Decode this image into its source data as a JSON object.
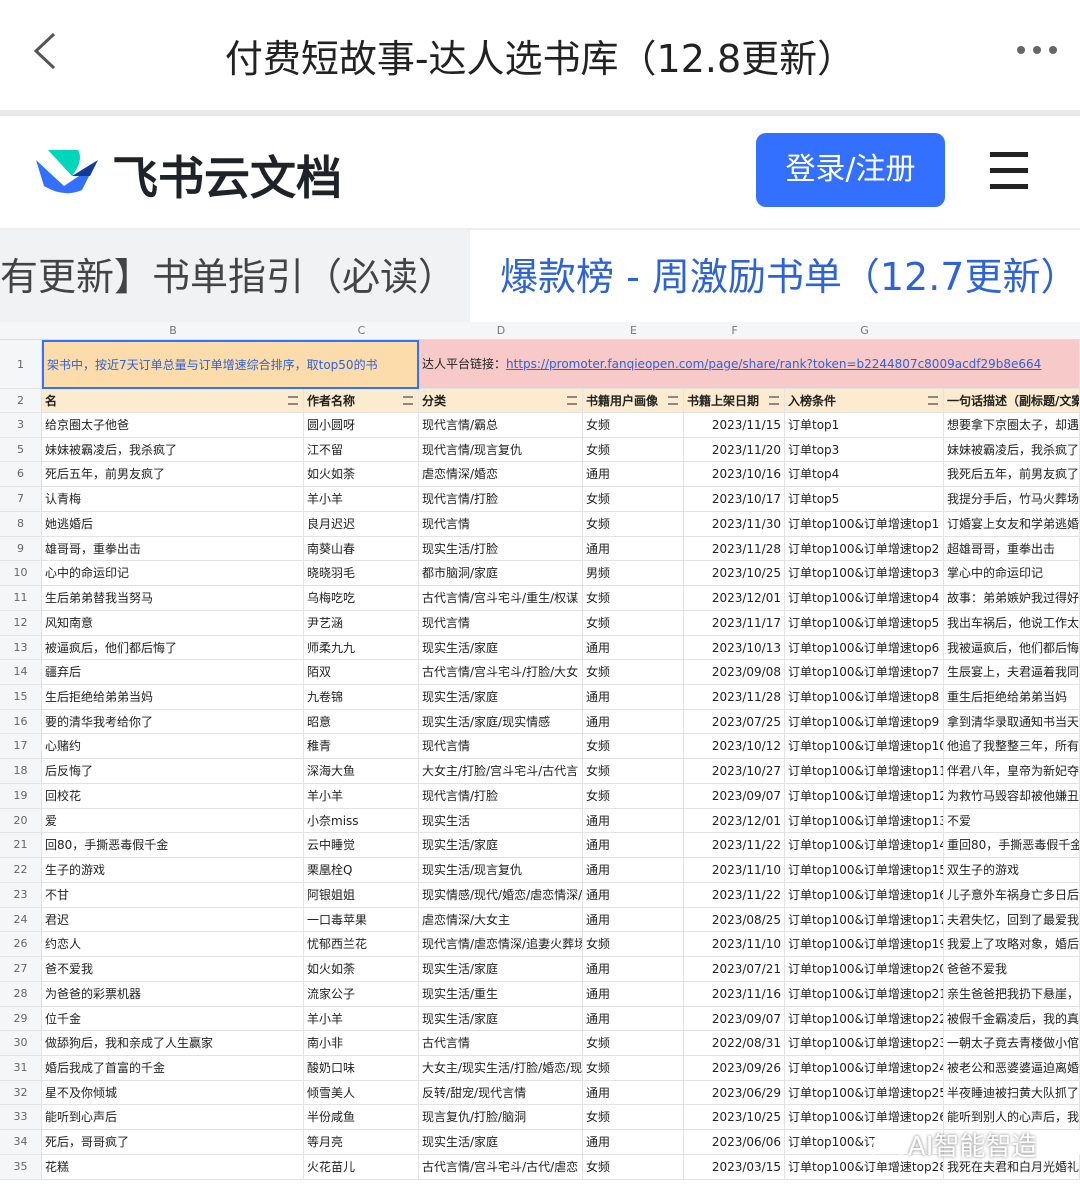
{
  "topbar": {
    "title": "付费短故事-达人选书库（12.8更新）"
  },
  "brand": {
    "name": "飞书云文档",
    "login": "登录/注册"
  },
  "tabs": [
    "有更新】书单指引（必读）",
    "爆款榜 - 周激励书单（12.7更新）"
  ],
  "sheet": {
    "columns": [
      "B",
      "C",
      "D",
      "E",
      "F",
      "G"
    ],
    "row1": {
      "num": "1",
      "note": "架书中，按近7天订单总量与订单增速综合排序，取top50的书",
      "link_label": "达人平台链接：",
      "link": "https://promoter.fanqieopen.com/page/share/rank?token=b2244807c8009acdf29b8e664"
    },
    "header": {
      "num": "2",
      "cells": [
        "名",
        "作者名称",
        "分类",
        "书籍用户画像",
        "书籍上架日期",
        "入榜条件",
        "一句话描述（副标题/文案"
      ]
    },
    "rows": [
      [
        "3",
        "给京圈太子他爸",
        "圆小圆呀",
        "现代言情/霸总",
        "女频",
        "2023/11/15",
        "订单top1",
        "想要拿下京圈太子，却遇"
      ],
      [
        "5",
        "妹妹被霸凌后，我杀疯了",
        "江不留",
        "现代言情/现言复仇",
        "女频",
        "2023/11/20",
        "订单top3",
        "妹妹被霸凌后，我杀疯了"
      ],
      [
        "6",
        "死后五年，前男友疯了",
        "如火如荼",
        "虐恋情深/婚恋",
        "通用",
        "2023/10/16",
        "订单top4",
        "我死后五年，前男友疯了"
      ],
      [
        "7",
        "认青梅",
        "羊小羊",
        "现代言情/打脸",
        "女频",
        "2023/10/17",
        "订单top5",
        "我提分手后，竹马火葬场"
      ],
      [
        "8",
        "她逃婚后",
        "良月迟迟",
        "现代言情",
        "女频",
        "2023/11/30",
        "订单top100&订单增速top1",
        "订婚宴上女友和学弟逃婚"
      ],
      [
        "9",
        "雄哥哥，重拳出击",
        "南葵山春",
        "现实生活/打脸",
        "通用",
        "2023/11/28",
        "订单top100&订单增速top2",
        "超雄哥哥，重拳出击"
      ],
      [
        "10",
        "心中的命运印记",
        "晓晓羽毛",
        "都市脑洞/家庭",
        "男频",
        "2023/10/25",
        "订单top100&订单增速top3",
        "掌心中的命运印记"
      ],
      [
        "11",
        "生后弟弟替我当努马",
        "乌梅吃吃",
        "古代言情/宫斗宅斗/重生/权谋",
        "女频",
        "2023/12/01",
        "订单top100&订单增速top4",
        "故事：弟弟嫉妒我过得好"
      ],
      [
        "12",
        "风知南意",
        "尹艺涵",
        "现代言情",
        "女频",
        "2023/11/17",
        "订单top100&订单增速top5",
        "我出车祸后，他说工作太"
      ],
      [
        "13",
        "被逼疯后，他们都后悔了",
        "师柔九九",
        "现实生活/家庭",
        "通用",
        "2023/10/13",
        "订单top100&订单增速top6",
        "我被逼疯后，他们都后悔"
      ],
      [
        "14",
        "疆弃后",
        "陌双",
        "古代言情/宫斗宅斗/打脸/大女",
        "女频",
        "2023/09/08",
        "订单top100&订单增速top7",
        "生辰宴上，夫君逼着我同"
      ],
      [
        "15",
        "生后拒绝给弟弟当妈",
        "九卷锦",
        "现实生活/家庭",
        "通用",
        "2023/11/28",
        "订单top100&订单增速top8",
        "重生后拒绝给弟弟当妈"
      ],
      [
        "16",
        "要的清华我考给你了",
        "昭意",
        "现实生活/家庭/现实情感",
        "通用",
        "2023/07/25",
        "订单top100&订单增速top9",
        "拿到清华录取通知书当天"
      ],
      [
        "17",
        "心赌约",
        "稚青",
        "现代言情",
        "女频",
        "2023/10/12",
        "订单top100&订单增速top10",
        "他追了我整整三年，所有"
      ],
      [
        "18",
        "后反悔了",
        "深海大鱼",
        "大女主/打脸/宫斗宅斗/古代言",
        "女频",
        "2023/10/27",
        "订单top100&订单增速top11",
        "伴君八年，皇帝为新妃夺"
      ],
      [
        "19",
        "回校花",
        "羊小羊",
        "现代言情/打脸",
        "女频",
        "2023/09/07",
        "订单top100&订单增速top12",
        "为救竹马毁容却被他嫌丑"
      ],
      [
        "20",
        "爱",
        "小奈miss",
        "现实生活",
        "通用",
        "2023/12/01",
        "订单top100&订单增速top13",
        "不爱"
      ],
      [
        "21",
        "回80，手撕恶毒假千金",
        "云中睡觉",
        "现实生活/家庭",
        "通用",
        "2023/11/22",
        "订单top100&订单增速top14",
        "重回80，手撕恶毒假千金"
      ],
      [
        "22",
        "生子的游戏",
        "栗凰栓Q",
        "现实生活/现言复仇",
        "通用",
        "2023/11/10",
        "订单top100&订单增速top15",
        "双生子的游戏"
      ],
      [
        "23",
        "不甘",
        "阿银姐姐",
        "现实情感/现代/婚恋/虐恋情深/",
        "通用",
        "2023/11/22",
        "订单top100&订单增速top16",
        "儿子意外车祸身亡多日后"
      ],
      [
        "24",
        "君迟",
        "一口毒苹果",
        "虐恋情深/大女主",
        "通用",
        "2023/08/25",
        "订单top100&订单增速top17",
        "夫君失忆，回到了最爱我"
      ],
      [
        "26",
        "约恋人",
        "忧郁西兰花",
        "现代言情/虐恋情深/追妻火葬场",
        "女频",
        "2023/11/10",
        "订单top100&订单增速top19",
        "我爱上了攻略对象，婚后"
      ],
      [
        "27",
        "爸不爱我",
        "如火如荼",
        "现实生活/家庭",
        "通用",
        "2023/07/21",
        "订单top100&订单增速top20",
        "爸爸不爱我"
      ],
      [
        "28",
        "为爸爸的彩票机器",
        "流家公子",
        "现实生活/重生",
        "通用",
        "2023/11/16",
        "订单top100&订单增速top21",
        "亲生爸爸把我扔下悬崖，"
      ],
      [
        "29",
        "位千金",
        "羊小羊",
        "现实生活/家庭",
        "通用",
        "2023/09/07",
        "订单top100&订单增速top22",
        "被假千金霸凌后，我的真"
      ],
      [
        "30",
        "做舔狗后，我和亲成了人生赢家",
        "南小非",
        "古代言情",
        "女频",
        "2022/08/31",
        "订单top100&订单增速top23",
        "一朝太子竟去青楼做小倌"
      ],
      [
        "31",
        "婚后我成了首富的千金",
        "酸奶口味",
        "大女主/现实生活/打脸/婚恋/现",
        "女频",
        "2023/09/26",
        "订单top100&订单增速top24",
        "被老公和恶婆婆逼迫离婚"
      ],
      [
        "32",
        "星不及你倾城",
        "倾雪美人",
        "反转/甜宠/现代言情",
        "通用",
        "2023/06/29",
        "订单top100&订单增速top25",
        "半夜睡迪被扫黄大队抓了"
      ],
      [
        "33",
        "能听到心声后",
        "半份咸鱼",
        "现言复仇/打脸/脑洞",
        "女频",
        "2023/10/25",
        "订单top100&订单增速top26",
        "能听到别人的心声后，我"
      ],
      [
        "34",
        "死后，哥哥疯了",
        "等月亮",
        "现实生活/家庭",
        "通用",
        "2023/06/06",
        "订单top100&订"
      ],
      [
        "35",
        "花糕",
        "火花苗儿",
        "古代言情/宫斗宅斗/古代/虐恋",
        "女频",
        "2023/03/15",
        "订单top100&订单增速top28",
        "我死在夫君和白月光婚礼"
      ]
    ]
  },
  "watermark": "AI智能智造"
}
